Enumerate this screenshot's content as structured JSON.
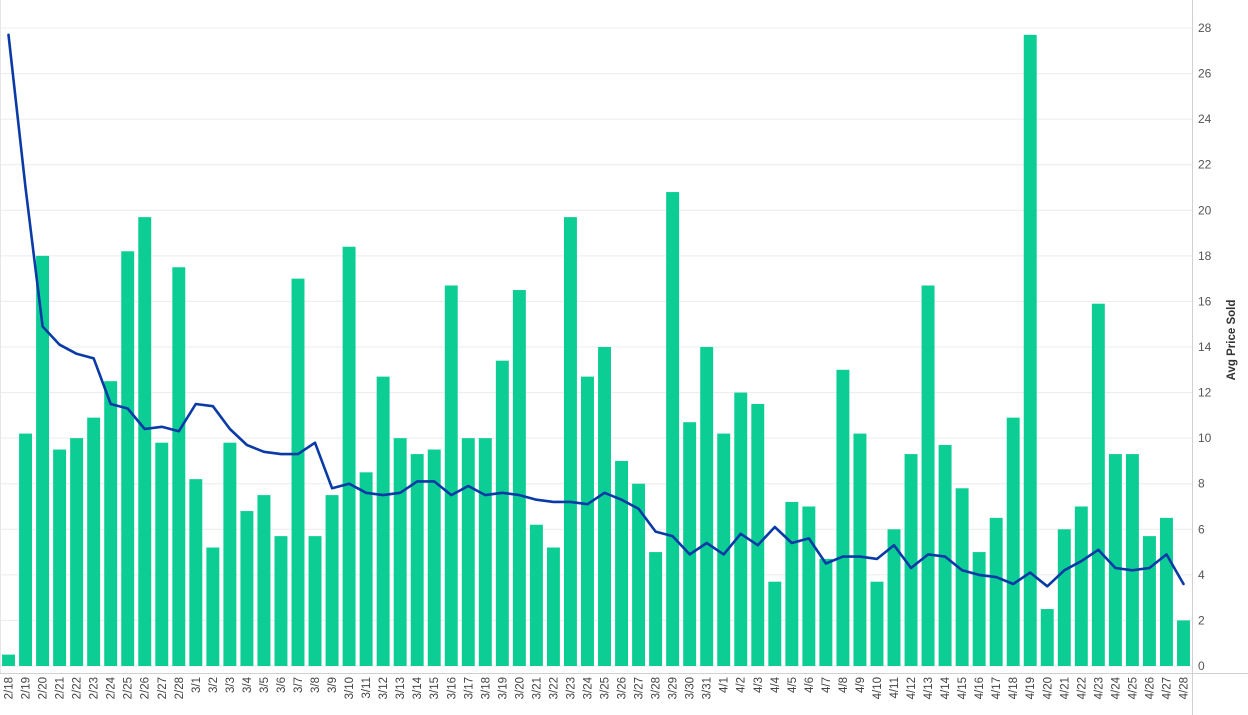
{
  "chart_data": {
    "type": "bar",
    "ylabel": "Avg Price Sold",
    "ylim": [
      0,
      28
    ],
    "yticks": [
      0,
      2,
      4,
      6,
      8,
      10,
      12,
      14,
      16,
      18,
      20,
      22,
      24,
      26,
      28
    ],
    "grid": true,
    "categories": [
      "2/18",
      "2/19",
      "2/20",
      "2/21",
      "2/22",
      "2/23",
      "2/24",
      "2/25",
      "2/26",
      "2/27",
      "2/28",
      "3/1",
      "3/2",
      "3/3",
      "3/4",
      "3/5",
      "3/6",
      "3/7",
      "3/8",
      "3/9",
      "3/10",
      "3/11",
      "3/12",
      "3/13",
      "3/14",
      "3/15",
      "3/16",
      "3/17",
      "3/18",
      "3/19",
      "3/20",
      "3/21",
      "3/22",
      "3/23",
      "3/24",
      "3/25",
      "3/26",
      "3/27",
      "3/28",
      "3/29",
      "3/30",
      "3/31",
      "4/1",
      "4/2",
      "4/3",
      "4/4",
      "4/5",
      "4/6",
      "4/7",
      "4/8",
      "4/9",
      "4/10",
      "4/11",
      "4/12",
      "4/13",
      "4/14",
      "4/15",
      "4/16",
      "4/17",
      "4/18",
      "4/19",
      "4/20",
      "4/21",
      "4/22",
      "4/23",
      "4/24",
      "4/25",
      "4/26",
      "4/27",
      "4/28"
    ],
    "series": [
      {
        "type": "bar",
        "color": "#0cce95",
        "values": [
          0.5,
          10.2,
          18.0,
          9.5,
          10.0,
          10.9,
          12.5,
          18.2,
          19.7,
          9.8,
          17.5,
          8.2,
          5.2,
          9.8,
          6.8,
          7.5,
          5.7,
          17.0,
          5.7,
          7.5,
          18.4,
          8.5,
          12.7,
          10.0,
          9.3,
          9.5,
          16.7,
          10.0,
          10.0,
          13.4,
          16.5,
          6.2,
          5.2,
          19.7,
          12.7,
          14.0,
          9.0,
          8.0,
          5.0,
          20.8,
          10.7,
          14.0,
          10.2,
          12.0,
          11.5,
          3.7,
          7.2,
          7.0,
          4.7,
          13.0,
          10.2,
          3.7,
          6.0,
          9.3,
          16.7,
          9.7,
          7.8,
          5.0,
          6.5,
          10.9,
          27.7,
          2.5,
          6.0,
          7.0,
          15.9,
          9.3,
          9.3,
          5.7,
          6.5,
          2.0
        ]
      },
      {
        "type": "line",
        "color": "#0a3aa6",
        "values": [
          27.7,
          21.0,
          14.9,
          14.1,
          13.7,
          13.5,
          11.5,
          11.3,
          10.4,
          10.5,
          10.3,
          11.5,
          11.4,
          10.4,
          9.7,
          9.4,
          9.3,
          9.3,
          9.8,
          7.8,
          8.0,
          7.6,
          7.5,
          7.6,
          8.1,
          8.1,
          7.5,
          7.9,
          7.5,
          7.6,
          7.5,
          7.3,
          7.2,
          7.2,
          7.1,
          7.6,
          7.3,
          6.9,
          5.9,
          5.7,
          4.9,
          5.4,
          4.9,
          5.8,
          5.3,
          6.1,
          5.4,
          5.6,
          4.5,
          4.8,
          4.8,
          4.7,
          5.3,
          4.3,
          4.9,
          4.8,
          4.2,
          4.0,
          3.9,
          3.6,
          4.1,
          3.5,
          4.2,
          4.6,
          5.1,
          4.3,
          4.2,
          4.3,
          4.9,
          3.6
        ]
      }
    ]
  }
}
